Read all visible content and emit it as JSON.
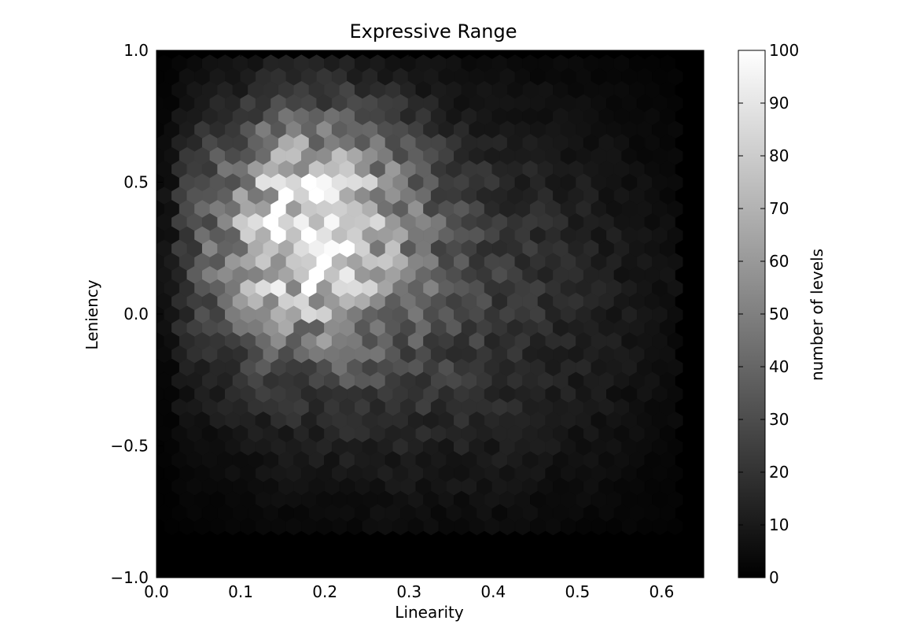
{
  "chart_data": {
    "type": "heatmap",
    "subtype": "hexbin",
    "title": "Expressive Range",
    "xlabel": "Linearity",
    "ylabel": "Leniency",
    "xlim": [
      0.0,
      0.65
    ],
    "ylim": [
      -1.0,
      1.0
    ],
    "xticks": [
      "0.0",
      "0.1",
      "0.2",
      "0.3",
      "0.4",
      "0.5",
      "0.6"
    ],
    "yticks": [
      "−1.0",
      "−0.5",
      "0.0",
      "0.5",
      "1.0"
    ],
    "colorbar": {
      "label": "number of levels",
      "range": [
        0,
        100
      ],
      "ticks": [
        "0",
        "10",
        "20",
        "30",
        "40",
        "50",
        "60",
        "70",
        "80",
        "90",
        "100"
      ],
      "colormap": "gray"
    },
    "density": {
      "description_peak": [
        0.17,
        0.37
      ],
      "peak_count": 80,
      "data_x_range": [
        0.0,
        0.62
      ],
      "data_y_range": [
        -0.85,
        0.95
      ],
      "grid": "hexagonal"
    },
    "grid": false,
    "background_color": "#000000"
  }
}
